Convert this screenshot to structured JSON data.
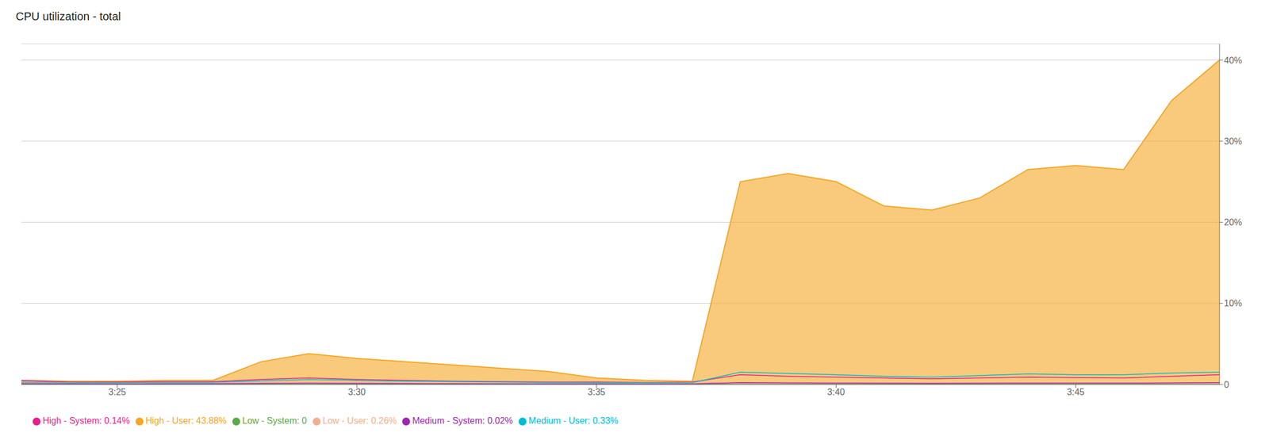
{
  "chart_data": {
    "type": "line",
    "title": "CPU utilization - total",
    "x": [
      0,
      1,
      2,
      3,
      4,
      5,
      6,
      7,
      8,
      9,
      10,
      11,
      12,
      13,
      14,
      15,
      16,
      17,
      18,
      19,
      20,
      21,
      22,
      23,
      24,
      25
    ],
    "xlim": [
      0,
      25
    ],
    "xticks": [
      {
        "value": 2,
        "label": "3:25"
      },
      {
        "value": 7,
        "label": "3:30"
      },
      {
        "value": 12,
        "label": "3:35"
      },
      {
        "value": 17,
        "label": "3:40"
      },
      {
        "value": 22,
        "label": "3:45"
      }
    ],
    "ylim": [
      0,
      42
    ],
    "yticks": [
      0,
      {
        "value": 10,
        "label": "10%"
      },
      {
        "value": 20,
        "label": "20%"
      },
      {
        "value": 30,
        "label": "30%"
      },
      {
        "value": 40,
        "label": "40%"
      }
    ],
    "grid": "y",
    "legend": "lower left",
    "series": [
      {
        "name": "High - System: 0.14%",
        "color": "#e91e8c",
        "values": [
          0.5,
          0.3,
          0.3,
          0.35,
          0.35,
          0.6,
          0.8,
          0.6,
          0.5,
          0.4,
          0.35,
          0.3,
          0.3,
          0.25,
          0.3,
          1.2,
          1.0,
          0.9,
          0.8,
          0.7,
          0.8,
          0.9,
          0.85,
          0.8,
          1.0,
          1.2
        ]
      },
      {
        "name": "High - User: 43.88%",
        "color": "#f5a623",
        "type": "area",
        "values": [
          0.5,
          0.4,
          0.4,
          0.5,
          0.5,
          2.8,
          3.8,
          3.2,
          2.8,
          2.4,
          2.0,
          1.6,
          0.8,
          0.5,
          0.4,
          25.0,
          26.0,
          25.0,
          22.0,
          21.5,
          23.0,
          26.5,
          27.0,
          26.5,
          35.0,
          40.0
        ]
      },
      {
        "name": "Low - System: 0",
        "color": "#5baa4a",
        "values": [
          0.0,
          0.0,
          0.0,
          0.0,
          0.0,
          0.0,
          0.0,
          0.0,
          0.0,
          0.0,
          0.0,
          0.0,
          0.0,
          0.0,
          0.0,
          0.0,
          0.0,
          0.0,
          0.0,
          0.0,
          0.0,
          0.0,
          0.0,
          0.0,
          0.0,
          0.0
        ]
      },
      {
        "name": "Low - User: 0.26%",
        "color": "#f0b090",
        "values": [
          0.25,
          0.2,
          0.2,
          0.22,
          0.22,
          0.3,
          0.35,
          0.28,
          0.22,
          0.2,
          0.18,
          0.18,
          0.18,
          0.18,
          0.22,
          0.3,
          0.28,
          0.25,
          0.22,
          0.2,
          0.2,
          0.22,
          0.2,
          0.2,
          0.22,
          0.25
        ]
      },
      {
        "name": "Medium - System: 0.02%",
        "color": "#9c27b0",
        "values": [
          0.1,
          0.08,
          0.07,
          0.08,
          0.08,
          0.12,
          0.15,
          0.12,
          0.1,
          0.08,
          0.07,
          0.07,
          0.07,
          0.06,
          0.07,
          0.2,
          0.18,
          0.16,
          0.14,
          0.12,
          0.14,
          0.16,
          0.15,
          0.15,
          0.18,
          0.2
        ]
      },
      {
        "name": "Medium - User: 0.33%",
        "color": "#00bcd4",
        "values": [
          0.3,
          0.25,
          0.22,
          0.25,
          0.25,
          0.45,
          0.6,
          0.5,
          0.4,
          0.35,
          0.3,
          0.25,
          0.22,
          0.2,
          0.22,
          1.5,
          1.35,
          1.2,
          1.0,
          0.9,
          1.1,
          1.3,
          1.2,
          1.2,
          1.4,
          1.5
        ]
      }
    ]
  }
}
